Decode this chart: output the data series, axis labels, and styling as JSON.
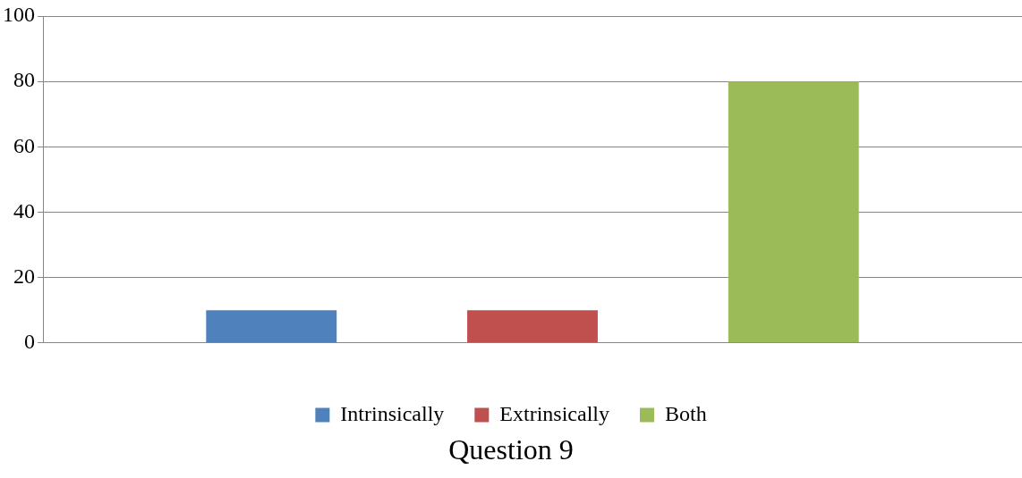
{
  "chart_data": {
    "type": "bar",
    "xlabel": "Question 9",
    "categories": [
      null
    ],
    "series": [
      {
        "name": "Intrinsically",
        "color": "#4f81bd",
        "values": [
          10
        ]
      },
      {
        "name": "Extrinsically",
        "color": "#c0504d",
        "values": [
          10
        ]
      },
      {
        "name": "Both",
        "color": "#9bbb59",
        "values": [
          80
        ]
      }
    ],
    "ylim": [
      0,
      100
    ],
    "yticks": [
      0,
      20,
      40,
      60,
      80,
      100
    ],
    "grid": "y",
    "legend": "bottom"
  }
}
